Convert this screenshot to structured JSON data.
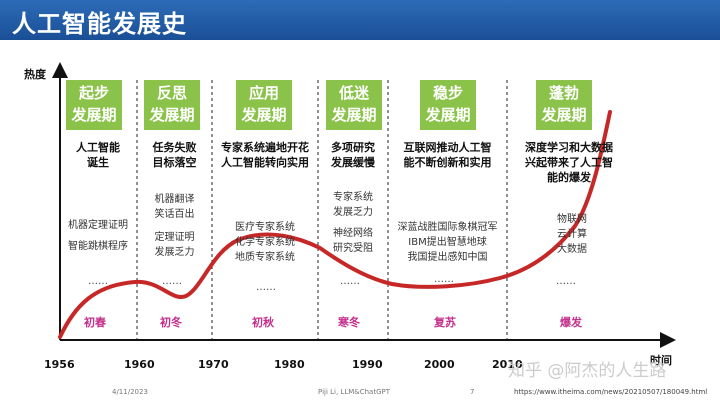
{
  "title": "人工智能发展史",
  "axes": {
    "y_label": "热度",
    "x_label": "时间"
  },
  "years": [
    "1956",
    "1960",
    "1970",
    "1980",
    "1990",
    "2000",
    "2010"
  ],
  "phases": [
    {
      "name_line1": "起步",
      "name_line2": "发展期",
      "headline": [
        "人工智能",
        "诞生"
      ],
      "details": [
        "机器定理证明",
        "智能跳棋程序"
      ],
      "dots": "……",
      "season": "初春"
    },
    {
      "name_line1": "反思",
      "name_line2": "发展期",
      "headline": [
        "任务失败",
        "目标落空"
      ],
      "details": [
        "机器翻译",
        "笑话百出",
        "定理证明",
        "发展乏力"
      ],
      "dots": "……",
      "season": "初冬"
    },
    {
      "name_line1": "应用",
      "name_line2": "发展期",
      "headline": [
        "专家系统遍地开花",
        "人工智能转向实用"
      ],
      "details": [
        "医疗专家系统",
        "化学专家系统",
        "地质专家系统"
      ],
      "dots": "……",
      "season": "初秋"
    },
    {
      "name_line1": "低迷",
      "name_line2": "发展期",
      "headline": [
        "多项研究",
        "发展缓慢"
      ],
      "details": [
        "专家系统",
        "发展乏力",
        "神经网络",
        "研究受阻"
      ],
      "dots": "……",
      "season": "寒冬"
    },
    {
      "name_line1": "稳步",
      "name_line2": "发展期",
      "headline": [
        "互联网推动人工智",
        "能不断创新和实用"
      ],
      "details": [
        "深蓝战胜国际象棋冠军",
        "IBM提出智慧地球",
        "我国提出感知中国"
      ],
      "dots": "……",
      "season": "复苏"
    },
    {
      "name_line1": "蓬勃",
      "name_line2": "发展期",
      "headline": [
        "深度学习和大数据",
        "兴起带来了人工智",
        "能的爆发"
      ],
      "details": [
        "物联网",
        "云计算",
        "大数据"
      ],
      "dots": "……",
      "season": "爆发"
    }
  ],
  "watermark": "知乎 @阿杰的人生路",
  "footer": {
    "date": "4/11/2023",
    "author": "Piji Li, LLM&ChatGPT",
    "page": "7",
    "url": "https://www.itheima.com/news/20210507/180049.html"
  },
  "colors": {
    "title_bar": "#1f5aa6",
    "phase_box": "#8bc34a",
    "curve": "#c62828",
    "season": "#c4308c"
  }
}
